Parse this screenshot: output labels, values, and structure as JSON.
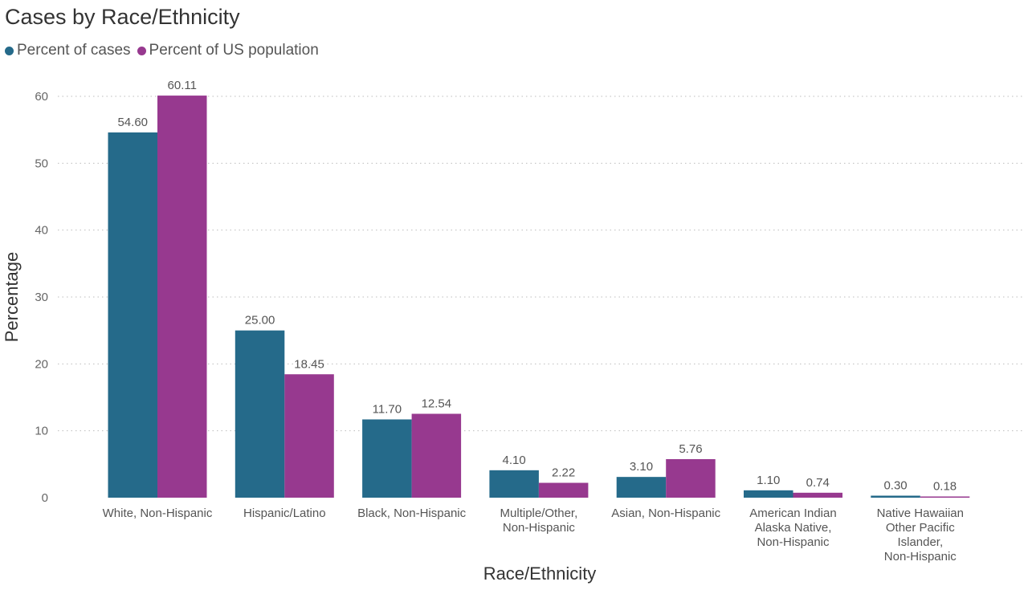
{
  "chart_data": {
    "type": "bar",
    "title": "Cases by Race/Ethnicity",
    "xlabel": "Race/Ethnicity",
    "ylabel": "Percentage",
    "ylim": [
      0,
      62
    ],
    "yticks": [
      0,
      10,
      20,
      30,
      40,
      50,
      60
    ],
    "grid": true,
    "legend_position": "top-left",
    "categories": [
      [
        "White, Non-Hispanic"
      ],
      [
        "Hispanic/Latino"
      ],
      [
        "Black, Non-Hispanic"
      ],
      [
        "Multiple/Other,",
        "Non-Hispanic"
      ],
      [
        "Asian, Non-Hispanic"
      ],
      [
        "American Indian",
        "Alaska Native,",
        "Non-Hispanic"
      ],
      [
        "Native Hawaiian",
        "Other Pacific",
        "Islander,",
        "Non-Hispanic"
      ]
    ],
    "series": [
      {
        "name": "Percent of cases",
        "color": "#256A8A",
        "values": [
          54.6,
          25.0,
          11.7,
          4.1,
          3.1,
          1.1,
          0.3
        ],
        "labels": [
          "54.60",
          "25.00",
          "11.70",
          "4.10",
          "3.10",
          "1.10",
          "0.30"
        ]
      },
      {
        "name": "Percent of US population",
        "color": "#97398F",
        "values": [
          60.11,
          18.45,
          12.54,
          2.22,
          5.76,
          0.74,
          0.18
        ],
        "labels": [
          "60.11",
          "18.45",
          "12.54",
          "2.22",
          "5.76",
          "0.74",
          "0.18"
        ]
      }
    ]
  }
}
